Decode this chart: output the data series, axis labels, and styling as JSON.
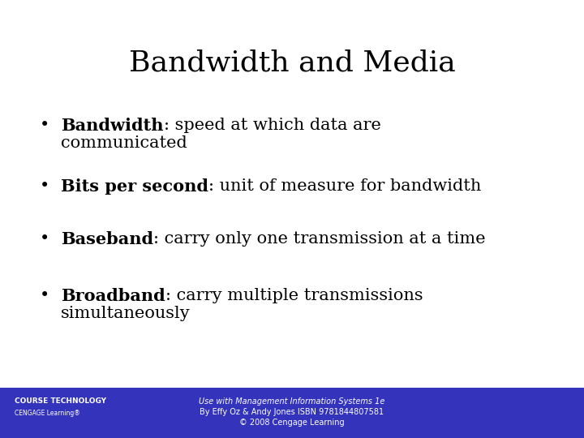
{
  "title": "Bandwidth and Media",
  "title_fontsize": 26,
  "title_color": "#000000",
  "background_color": "#ffffff",
  "footer_bg_color": "#3333bb",
  "footer_text_color": "#ffffff",
  "bullet_entries": [
    [
      "Bandwidth",
      ": speed at which data are\ncommunicated"
    ],
    [
      "Bits per second",
      ": unit of measure for bandwidth"
    ],
    [
      "Baseband",
      ": carry only one transmission at a time"
    ],
    [
      "Broadband",
      ": carry multiple transmissions\nsimultaneously"
    ]
  ],
  "bullet_fontsize": 15,
  "footer_text_line1": "Use with Management Information Systems 1e",
  "footer_text_line2": "By Effy Oz & Andy Jones ISBN 9781844807581",
  "footer_text_line3": "© 2008 Cengage Learning",
  "footer_fontsize": 7,
  "logo_text1": "COURSE TECHNOLOGY",
  "logo_text2": "CENGAGE Learning®"
}
